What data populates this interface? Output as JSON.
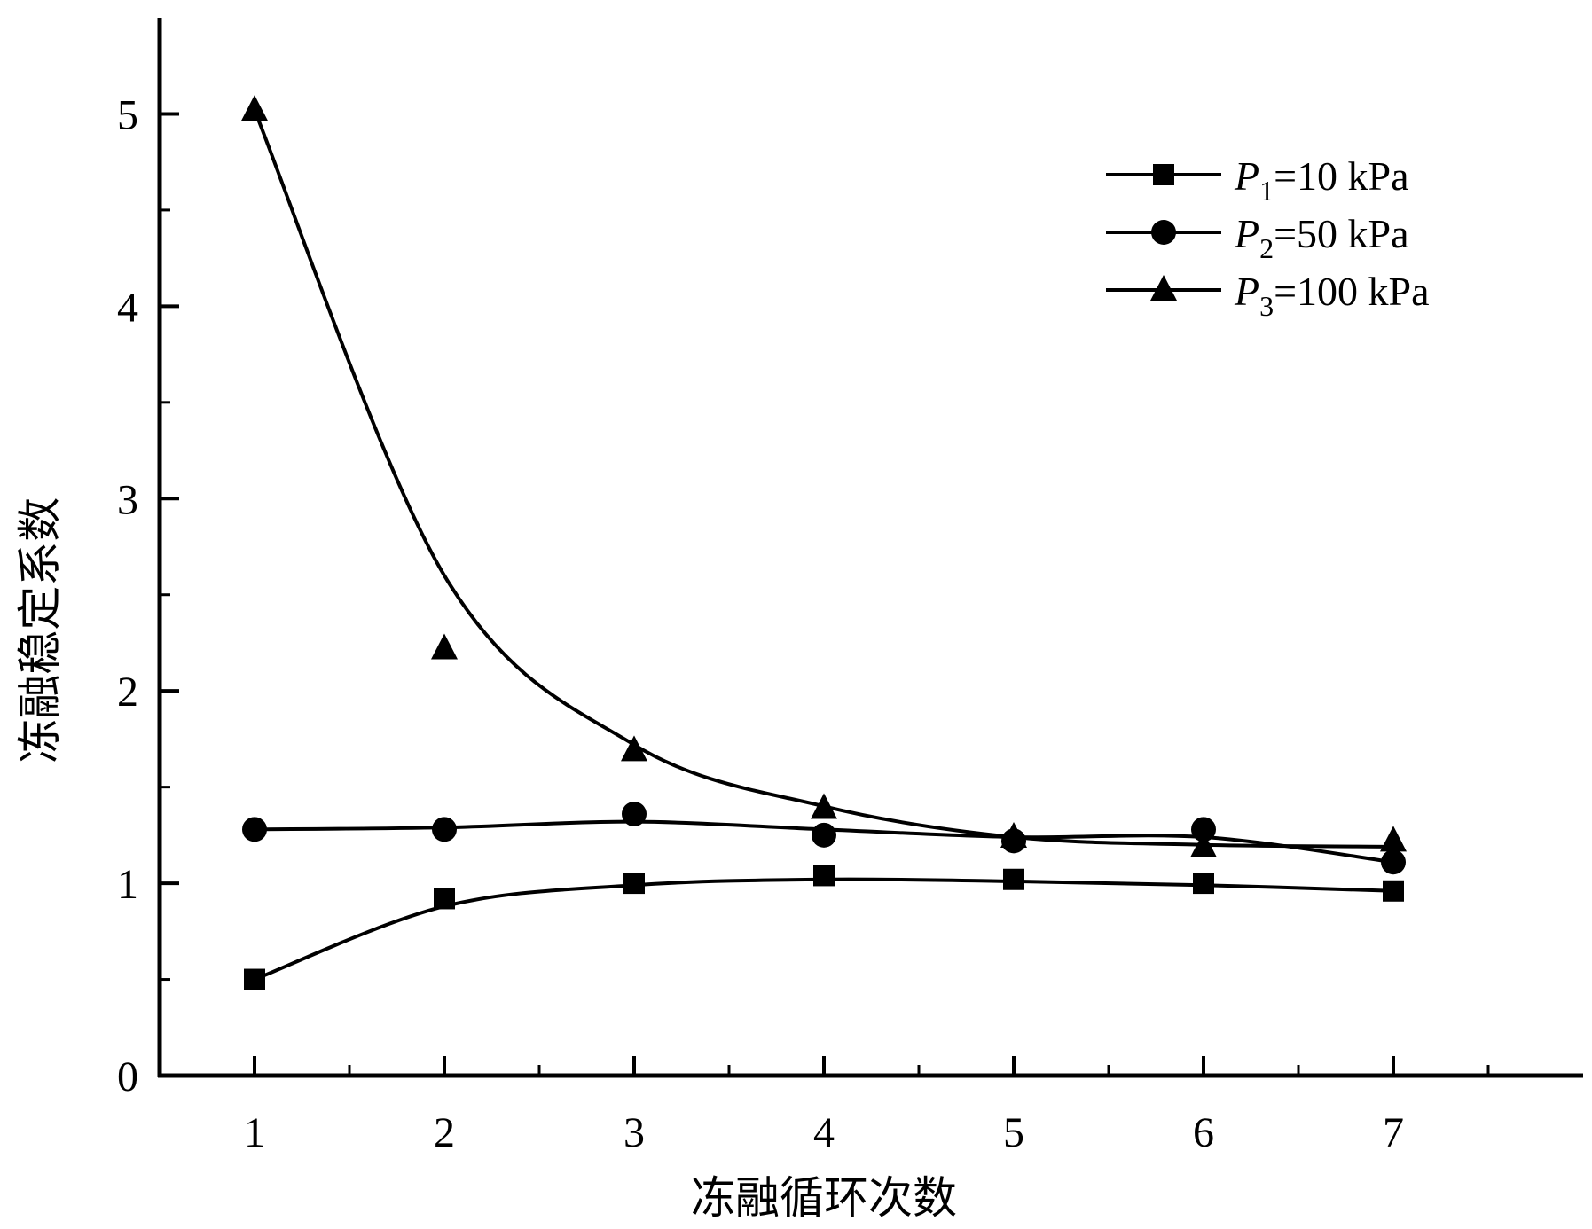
{
  "chart_data": {
    "type": "scatter",
    "xlabel": "冻融循环次数",
    "ylabel": "冻融稳定系数",
    "xlim": [
      0.5,
      8.0
    ],
    "ylim": [
      0,
      5.5
    ],
    "x_ticks": [
      "1",
      "2",
      "3",
      "4",
      "5",
      "6",
      "7"
    ],
    "y_ticks": [
      "0",
      "1",
      "2",
      "3",
      "4",
      "5"
    ],
    "x": [
      1,
      2,
      3,
      4,
      5,
      6,
      7
    ],
    "grid": false,
    "legend_position": "top-right",
    "series": [
      {
        "label_var": "P",
        "label_sub": "1",
        "label_rest": "=10 kPa",
        "marker": "square",
        "values": [
          0.5,
          0.92,
          1.0,
          1.04,
          1.02,
          1.0,
          0.96
        ],
        "fit": [
          0.5,
          0.88,
          0.99,
          1.02,
          1.01,
          0.99,
          0.96
        ]
      },
      {
        "label_var": "P",
        "label_sub": "2",
        "label_rest": "=50 kPa",
        "marker": "circle",
        "values": [
          1.28,
          1.28,
          1.36,
          1.25,
          1.22,
          1.28,
          1.11
        ],
        "fit": [
          1.28,
          1.29,
          1.32,
          1.28,
          1.24,
          1.24,
          1.11
        ]
      },
      {
        "label_var": "P",
        "label_sub": "3",
        "label_rest": "=100 kPa",
        "marker": "triangle",
        "values": [
          5.02,
          2.22,
          1.69,
          1.39,
          1.24,
          1.19,
          1.22
        ],
        "fit": [
          5.02,
          2.6,
          1.72,
          1.4,
          1.24,
          1.2,
          1.19
        ]
      }
    ],
    "colors": {
      "ink": "#000000",
      "background": "#ffffff"
    }
  }
}
